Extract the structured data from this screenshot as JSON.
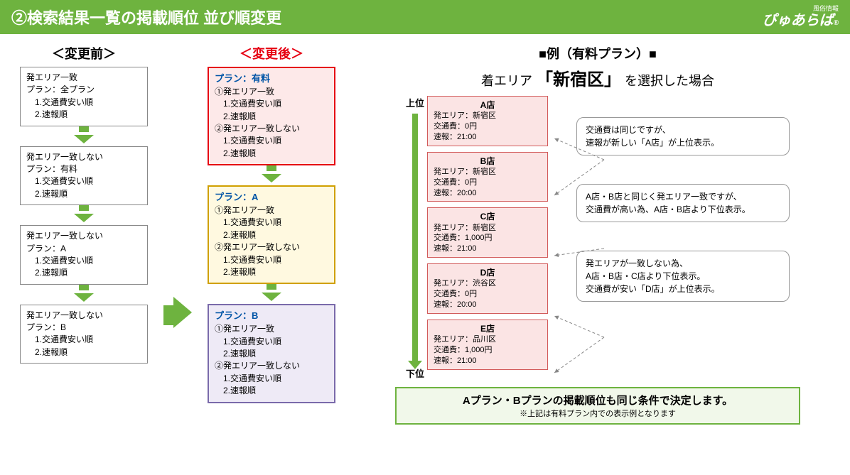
{
  "header": {
    "title": "②検索結果一覧の掲載順位 並び順変更",
    "logo_sub": "風俗情報",
    "logo_main": "ぴゅあらば"
  },
  "before": {
    "heading": "＜変更前＞",
    "boxes": [
      {
        "lines": [
          "発エリア一致",
          "プラン：全プラン",
          "　1.交通費安い順",
          "　2.速報順"
        ]
      },
      {
        "lines": [
          "発エリア一致しない",
          "プラン：有料",
          "　1.交通費安い順",
          "　2.速報順"
        ]
      },
      {
        "lines": [
          "発エリア一致しない",
          "プラン：A",
          "　1.交通費安い順",
          "　2.速報順"
        ]
      },
      {
        "lines": [
          "発エリア一致しない",
          "プラン：B",
          "　1.交通費安い順",
          "　2.速報順"
        ]
      }
    ]
  },
  "after": {
    "heading": "＜変更後＞",
    "boxes": [
      {
        "style": "pale-pink",
        "plan": "プラン：有料",
        "lines": [
          "①発エリア一致",
          "　1.交通費安い順",
          "　2.速報順",
          "②発エリア一致しない",
          "　1.交通費安い順",
          "　2.速報順"
        ]
      },
      {
        "style": "pale-yellow",
        "plan": "プラン：A",
        "lines": [
          "①発エリア一致",
          "　1.交通費安い順",
          "　2.速報順",
          "②発エリア一致しない",
          "　1.交通費安い順",
          "　2.速報順"
        ]
      },
      {
        "style": "pale-purple",
        "plan": "プラン：B",
        "lines": [
          "①発エリア一致",
          "　1.交通費安い順",
          "　2.速報順",
          "②発エリア一致しない",
          "　1.交通費安い順",
          "　2.速報順"
        ]
      }
    ]
  },
  "example": {
    "title": "■例（有料プラン）■",
    "sub_pre": "着エリア",
    "sub_big": "「新宿区」",
    "sub_post": "を選択した場合",
    "top_label": "上位",
    "bottom_label": "下位",
    "stores": [
      {
        "name": "A店",
        "l1": "発エリア：新宿区",
        "l2": "交通費：0円",
        "l3": "速報：21:00"
      },
      {
        "name": "B店",
        "l1": "発エリア：新宿区",
        "l2": "交通費：0円",
        "l3": "速報：20:00"
      },
      {
        "name": "C店",
        "l1": "発エリア：新宿区",
        "l2": "交通費：1,000円",
        "l3": "速報：21:00"
      },
      {
        "name": "D店",
        "l1": "発エリア：渋谷区",
        "l2": "交通費：0円",
        "l3": "速報：20:00"
      },
      {
        "name": "E店",
        "l1": "発エリア：品川区",
        "l2": "交通費：1,000円",
        "l3": "速報：21:00"
      }
    ],
    "callouts": [
      "交通費は同じですが、\n速報が新しい「A店」が上位表示。",
      "A店・B店と同じく発エリア一致ですが、\n交通費が高い為、A店・B店より下位表示。",
      "発エリアが一致しない為、\nA店・B店・C店より下位表示。\n交通費が安い「D店」が上位表示。"
    ],
    "note_main": "Aプラン・Bプランの掲載順位も同じ条件で決定します。",
    "note_sub": "※上記は有料プラン内での表示例となります"
  },
  "colors": {
    "green": "#6eb33f",
    "red": "#e60012",
    "blue": "#0054a6"
  }
}
